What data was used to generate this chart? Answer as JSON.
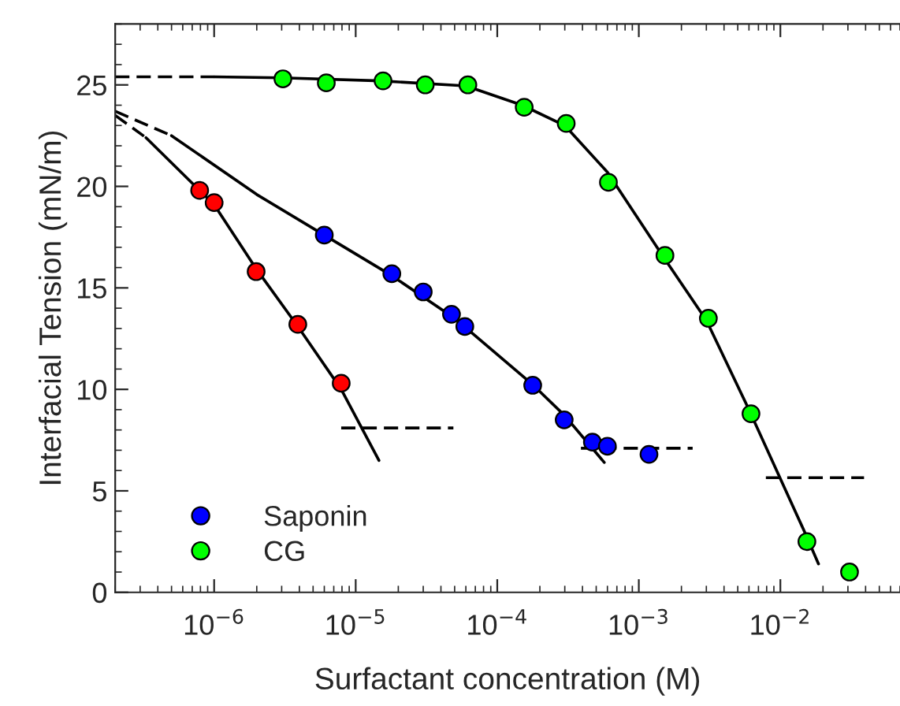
{
  "chart_data": {
    "type": "scatter",
    "xlabel": "Surfactant concentration (M)",
    "ylabel": "Interfacial Tension (mN/m)",
    "log": "x",
    "xlim": [
      2e-07,
      0.07
    ],
    "ylim": [
      0,
      28
    ],
    "xticks": [
      {
        "value": 1e-06,
        "label": "10$^{−6}$"
      },
      {
        "value": 1e-05,
        "label": "10$^{−5}$"
      },
      {
        "value": 0.0001,
        "label": "10$^{−4}$"
      },
      {
        "value": 0.001,
        "label": "10$^{−3}$"
      },
      {
        "value": 0.01,
        "label": "10$^{−2}$"
      }
    ],
    "yticks": [
      0,
      5,
      10,
      15,
      20,
      25
    ],
    "grid": false,
    "legend": "bottom left",
    "series": [
      {
        "type": "line",
        "line_style": "dashed",
        "color": "#000000",
        "x": [
          2e-07,
          3.3e-07
        ],
        "values": [
          23.5,
          22.4
        ]
      },
      {
        "type": "line",
        "line_style": "solid",
        "color": "#000000",
        "x": [
          3.3e-07,
          7.9e-07,
          1e-06,
          2e-06,
          3.9e-06,
          7.9e-06,
          1.46e-05
        ],
        "values": [
          22.4,
          19.8,
          19.1,
          15.9,
          13.1,
          10.0,
          6.5
        ]
      },
      {
        "type": "line",
        "line_style": "dashed",
        "color": "#000000",
        "x": [
          7.9e-06,
          4.9e-05
        ],
        "values": [
          8.1,
          8.1
        ]
      },
      {
        "type": "line",
        "line_style": "dashed",
        "color": "#000000",
        "x": [
          2e-07,
          5e-07
        ],
        "values": [
          23.7,
          22.5
        ]
      },
      {
        "type": "line",
        "line_style": "solid",
        "color": "#000000",
        "x": [
          5e-07,
          2e-06,
          6e-06,
          1.8e-05,
          5e-05,
          0.00018,
          0.0003,
          0.00057
        ],
        "values": [
          22.5,
          19.6,
          17.6,
          15.6,
          13.5,
          10.2,
          8.7,
          6.4
        ]
      },
      {
        "type": "line",
        "line_style": "dashed",
        "color": "#000000",
        "x": [
          0.00039,
          0.0024
        ],
        "values": [
          7.1,
          7.1
        ]
      },
      {
        "type": "line",
        "line_style": "dashed",
        "color": "#000000",
        "x": [
          2e-07,
          1e-06
        ],
        "values": [
          25.4,
          25.4
        ]
      },
      {
        "type": "line",
        "line_style": "solid",
        "color": "#000000",
        "x": [
          1e-06,
          3e-06,
          1.5e-05,
          6e-05,
          0.00015,
          0.0003,
          0.0006,
          0.0015,
          0.003,
          0.006,
          0.015,
          0.0186
        ],
        "values": [
          25.4,
          25.35,
          25.2,
          24.95,
          24.0,
          23.0,
          20.7,
          16.5,
          13.4,
          9.0,
          2.9,
          1.4
        ]
      },
      {
        "type": "line",
        "line_style": "dashed",
        "color": "#000000",
        "x": [
          0.0079,
          0.039
        ],
        "values": [
          5.65,
          5.65
        ]
      },
      {
        "marker": "circle",
        "color": "#ff0000",
        "x": [
          7.9e-07,
          1e-06,
          1.98e-06,
          3.9e-06,
          7.9e-06
        ],
        "values": [
          19.8,
          19.2,
          15.8,
          13.2,
          10.3
        ]
      },
      {
        "marker": "circle",
        "name": "Saponin",
        "color": "#0000ff",
        "x": [
          6e-06,
          1.8e-05,
          3e-05,
          4.75e-05,
          5.9e-05,
          0.000178,
          0.000297,
          0.00047,
          0.0006,
          0.00118
        ],
        "values": [
          17.6,
          15.7,
          14.8,
          13.7,
          13.1,
          10.2,
          8.5,
          7.4,
          7.2,
          6.8
        ]
      },
      {
        "marker": "circle",
        "name": "CG",
        "color": "#00ff00",
        "x": [
          3.06e-06,
          6.2e-06,
          1.56e-05,
          3.1e-05,
          6.2e-05,
          0.000155,
          0.000307,
          0.00061,
          0.00153,
          0.0031,
          0.0062,
          0.0154,
          0.0308
        ],
        "values": [
          25.3,
          25.1,
          25.2,
          25.0,
          25.0,
          23.9,
          23.1,
          20.2,
          16.6,
          13.5,
          8.8,
          2.5,
          1.0
        ]
      }
    ]
  }
}
